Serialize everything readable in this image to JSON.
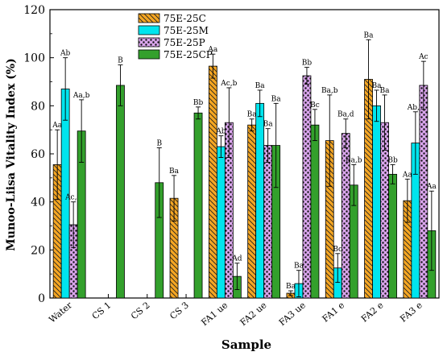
{
  "chart_data": {
    "type": "bar",
    "xlabel": "Sample",
    "ylabel": "Munoo-Liisa Vitality Index (%)",
    "ylim": [
      0,
      120
    ],
    "yticks": [
      0,
      20,
      40,
      60,
      80,
      100,
      120
    ],
    "grid": false,
    "legend_position": "top-center",
    "categories": [
      "Water",
      "CS 1",
      "CS 2",
      "CS 3",
      "FA1 ue",
      "FA2 ue",
      "FA3 ue",
      "FA1 e",
      "FA2 e",
      "FA3 e"
    ],
    "series": [
      {
        "name": "75E-25C",
        "color": "#F5A623",
        "pattern": "hatch",
        "values": [
          55.5,
          null,
          null,
          41.5,
          96.5,
          72,
          2,
          65.5,
          91,
          40.5
        ],
        "errors": [
          14.5,
          null,
          null,
          9.5,
          5,
          2.5,
          1,
          19,
          16.5,
          9
        ],
        "labels": [
          "Aa",
          "",
          "",
          "Ba",
          "Aa",
          "Ba",
          "Ba",
          "Ba,b",
          "Ba",
          "Aa"
        ]
      },
      {
        "name": "75E-25M",
        "color": "#00E5EE",
        "pattern": "solid",
        "values": [
          87,
          null,
          null,
          null,
          63,
          81,
          6,
          12.5,
          80,
          64.5
        ],
        "errors": [
          13,
          null,
          null,
          null,
          4.5,
          5.5,
          5.5,
          6,
          6.5,
          13
        ],
        "labels": [
          "Ab",
          "",
          "",
          "",
          "Ab",
          "Ba",
          "Ba",
          "Bc",
          "Ba",
          "Ab,c"
        ]
      },
      {
        "name": "75E-25P",
        "color": "#C77CE0",
        "pattern": "dots",
        "values": [
          30.5,
          null,
          null,
          null,
          73,
          63.5,
          92.5,
          68.5,
          73,
          88.5
        ],
        "errors": [
          9.5,
          null,
          null,
          null,
          14.5,
          7,
          3.5,
          6,
          11.5,
          10
        ],
        "labels": [
          "Ac,d",
          "",
          "",
          "",
          "Ac,b",
          "Ba",
          "Bb",
          "Ba,d",
          "Ba",
          "Ac"
        ]
      },
      {
        "name": "75E-25CP",
        "color": "#33A02C",
        "pattern": "solid",
        "values": [
          69.5,
          88.5,
          48,
          77,
          9,
          63.5,
          72,
          47,
          51.5,
          28
        ],
        "errors": [
          13,
          8.5,
          14.5,
          2.5,
          5.5,
          17.5,
          6.5,
          8.5,
          4,
          16.5
        ],
        "labels": [
          "Aa,b",
          "B",
          "B",
          "Bb",
          "Ad",
          "Ba",
          "Bc",
          "Ba,b",
          "Bb",
          "Aa"
        ]
      }
    ]
  }
}
